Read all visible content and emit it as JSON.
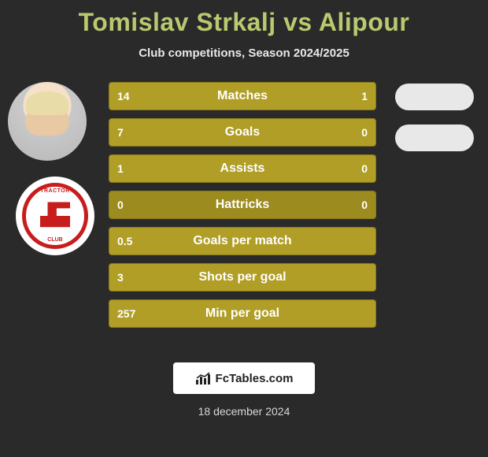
{
  "title_color": "#b8c96e",
  "title": "Tomislav Strkalj vs Alipour",
  "subtitle": "Club competitions, Season 2024/2025",
  "bar_colors": {
    "base": "#9c8b1f",
    "highlight": "#b09e26",
    "border": "#8a7a1a"
  },
  "background_color": "#2a2a2a",
  "text_color": "#ffffff",
  "rows": [
    {
      "label": "Matches",
      "left": "14",
      "right": "1",
      "left_pct": 93,
      "right_pct": 7
    },
    {
      "label": "Goals",
      "left": "7",
      "right": "0",
      "left_pct": 100,
      "right_pct": 0
    },
    {
      "label": "Assists",
      "left": "1",
      "right": "0",
      "left_pct": 100,
      "right_pct": 0
    },
    {
      "label": "Hattricks",
      "left": "0",
      "right": "0",
      "left_pct": 0,
      "right_pct": 0
    },
    {
      "label": "Goals per match",
      "left": "0.5",
      "right": "",
      "left_pct": 100,
      "right_pct": 0
    },
    {
      "label": "Shots per goal",
      "left": "3",
      "right": "",
      "left_pct": 100,
      "right_pct": 0
    },
    {
      "label": "Min per goal",
      "left": "257",
      "right": "",
      "left_pct": 100,
      "right_pct": 0
    }
  ],
  "club_badge": {
    "top_text": "TRACTOR",
    "bottom_text": "CLUB",
    "border_color": "#c71d1d",
    "bg": "#ffffff"
  },
  "oval_color": "#e8e8e8",
  "footer": {
    "brand": "FcTables.com",
    "date": "18 december 2024"
  }
}
